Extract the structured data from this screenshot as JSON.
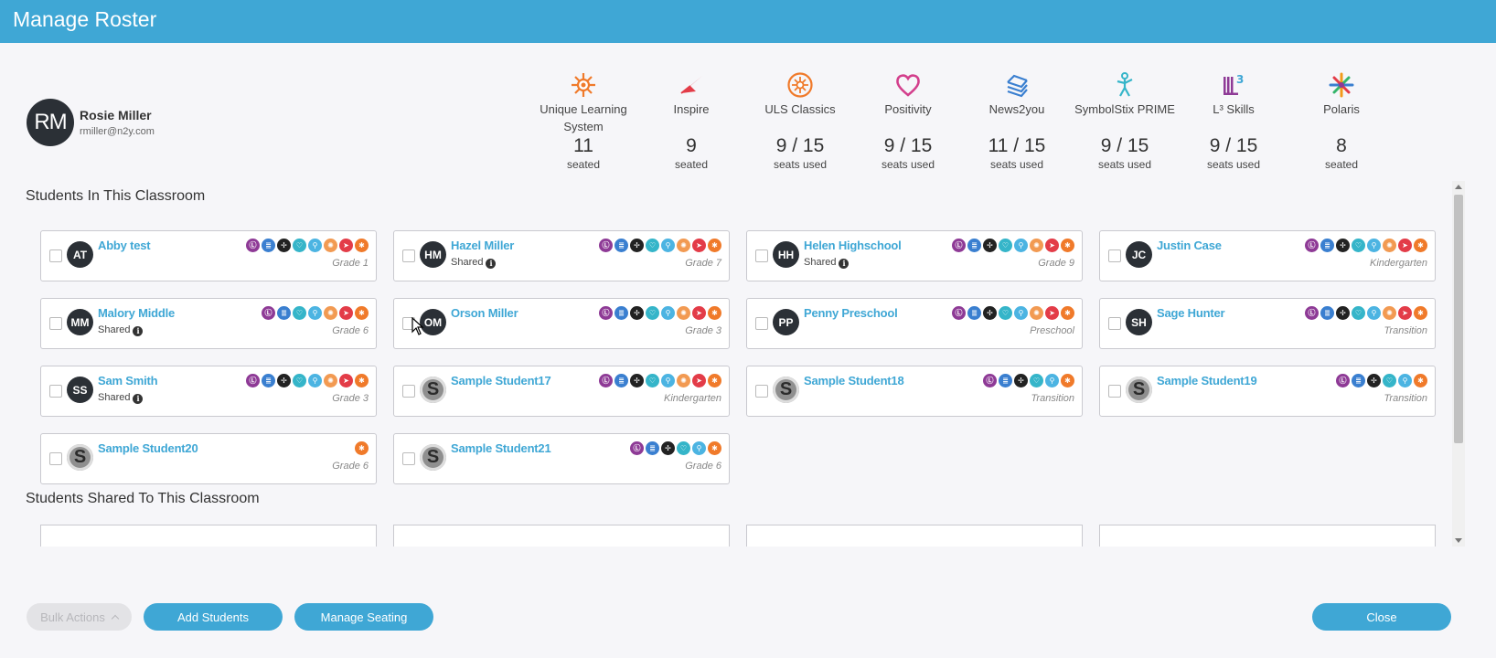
{
  "header": {
    "title": "Manage Roster"
  },
  "teacher": {
    "initials": "RM",
    "name": "Rosie Miller",
    "email": "rmiller@n2y.com"
  },
  "products": [
    {
      "icon": "unique-learning-icon",
      "name": "Unique Learning System",
      "count": "11",
      "label": "seated",
      "color": "#f07a2a"
    },
    {
      "icon": "inspire-icon",
      "name": "Inspire",
      "count": "9",
      "label": "seated",
      "color": "#e33c48"
    },
    {
      "icon": "uls-classics-icon",
      "name": "ULS Classics",
      "count": "9 / 15",
      "label": "seats used",
      "color": "#f07a2a"
    },
    {
      "icon": "positivity-icon",
      "name": "Positivity",
      "count": "9 / 15",
      "label": "seats used",
      "color": "#d33f8c"
    },
    {
      "icon": "news2you-icon",
      "name": "News2you",
      "count": "11 / 15",
      "label": "seats used",
      "color": "#3a7fd0"
    },
    {
      "icon": "symbolstix-icon",
      "name": "SymbolStix PRIME",
      "count": "9 / 15",
      "label": "seats used",
      "color": "#35b5c9"
    },
    {
      "icon": "l3-skills-icon",
      "name": "L³ Skills",
      "count": "9 / 15",
      "label": "seats used",
      "color": "#8e3a96"
    },
    {
      "icon": "polaris-icon",
      "name": "Polaris",
      "count": "8",
      "label": "seated",
      "color": "#f07a2a"
    }
  ],
  "sections": {
    "in_classroom": "Students In This Classroom",
    "shared": "Students Shared To This Classroom"
  },
  "shared_label": "Shared",
  "students": [
    {
      "initials": "AT",
      "name": "Abby test",
      "shared": false,
      "grade": "Grade 1",
      "icons": [
        "l3",
        "news",
        "polaris",
        "pos",
        "sym",
        "uls",
        "insp",
        "unique"
      ]
    },
    {
      "initials": "HM",
      "name": "Hazel Miller",
      "shared": true,
      "grade": "Grade 7",
      "icons": [
        "l3",
        "news",
        "polaris",
        "pos",
        "sym",
        "uls",
        "insp",
        "unique"
      ]
    },
    {
      "initials": "HH",
      "name": "Helen Highschool",
      "shared": true,
      "grade": "Grade 9",
      "icons": [
        "l3",
        "news",
        "polaris",
        "pos",
        "sym",
        "uls",
        "insp",
        "unique"
      ]
    },
    {
      "initials": "JC",
      "name": "Justin Case",
      "shared": false,
      "grade": "Kindergarten",
      "icons": [
        "l3",
        "news",
        "polaris",
        "pos",
        "sym",
        "uls",
        "insp",
        "unique"
      ]
    },
    {
      "initials": "MM",
      "name": "Malory Middle",
      "shared": true,
      "grade": "Grade 6",
      "icons": [
        "l3",
        "news",
        "pos",
        "sym",
        "uls",
        "insp",
        "unique"
      ]
    },
    {
      "initials": "OM",
      "name": "Orson Miller",
      "shared": false,
      "grade": "Grade 3",
      "icons": [
        "l3",
        "news",
        "polaris",
        "pos",
        "sym",
        "uls",
        "insp",
        "unique"
      ]
    },
    {
      "initials": "PP",
      "name": "Penny Preschool",
      "shared": false,
      "grade": "Preschool",
      "icons": [
        "l3",
        "news",
        "polaris",
        "pos",
        "sym",
        "uls",
        "insp",
        "unique"
      ]
    },
    {
      "initials": "SH",
      "name": "Sage Hunter",
      "shared": false,
      "grade": "Transition",
      "icons": [
        "l3",
        "news",
        "polaris",
        "pos",
        "sym",
        "uls",
        "insp",
        "unique"
      ]
    },
    {
      "initials": "SS",
      "name": "Sam Smith",
      "shared": true,
      "grade": "Grade 3",
      "icons": [
        "l3",
        "news",
        "polaris",
        "pos",
        "sym",
        "uls",
        "insp",
        "unique"
      ]
    },
    {
      "initials": "S",
      "name": "Sample Student17",
      "shared": false,
      "grade": "Kindergarten",
      "icons": [
        "l3",
        "news",
        "polaris",
        "pos",
        "sym",
        "uls",
        "insp",
        "unique"
      ]
    },
    {
      "initials": "S",
      "name": "Sample Student18",
      "shared": false,
      "grade": "Transition",
      "icons": [
        "l3",
        "news",
        "polaris",
        "pos",
        "sym",
        "unique"
      ]
    },
    {
      "initials": "S",
      "name": "Sample Student19",
      "shared": false,
      "grade": "Transition",
      "icons": [
        "l3",
        "news",
        "polaris",
        "pos",
        "sym",
        "unique"
      ]
    },
    {
      "initials": "S",
      "name": "Sample Student20",
      "shared": false,
      "grade": "Grade 6",
      "icons": [
        "unique"
      ]
    },
    {
      "initials": "S",
      "name": "Sample Student21",
      "shared": false,
      "grade": "Grade 6",
      "icons": [
        "l3",
        "news",
        "polaris",
        "pos",
        "sym",
        "unique"
      ]
    }
  ],
  "footer": {
    "bulk_actions": "Bulk Actions",
    "add_students": "Add Students",
    "manage_seating": "Manage Seating",
    "close": "Close"
  }
}
